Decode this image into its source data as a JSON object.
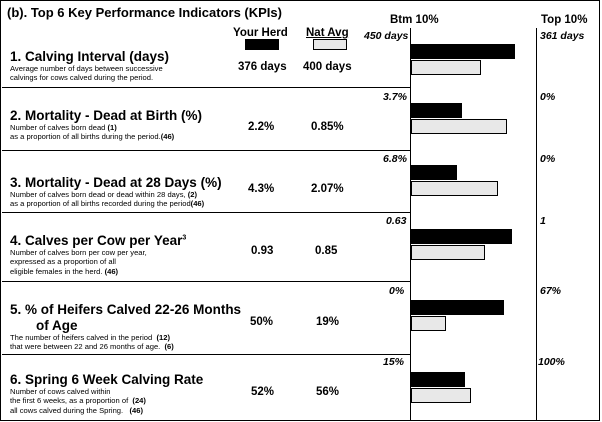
{
  "title": "(b). Top 6 Key Performance Indicators (KPIs)",
  "legend": {
    "herd_label": "Your Herd",
    "avg_label": "Nat Avg",
    "herd_color": "#000000",
    "avg_color": "#e8e8e8"
  },
  "scale": {
    "btm_label": "Btm 10%",
    "top_label": "Top 10%"
  },
  "kpis": [
    {
      "title": "1. Calving Interval (days)",
      "desc": [
        "Average number of days between successive",
        "calvings for cows calved during the period."
      ],
      "herd": "376 days",
      "avg": "400 days",
      "btm": "450 days",
      "top": "361 days"
    },
    {
      "title": "2. Mortality - Dead at Birth (%)",
      "desc_a": "Number of calves born dead",
      "num_a": "(1)",
      "desc_b": "as a proportion of all births during the period.",
      "num_b": "(46)",
      "herd": "2.2%",
      "avg": "0.85%",
      "btm": "3.7%",
      "top": "0%"
    },
    {
      "title": "3. Mortality - Dead at 28 Days (%)",
      "desc_a": "Number of calves born dead or dead within 28 days,",
      "num_a": "(2)",
      "desc_b": "as a proportion of all births recorded during the period",
      "num_b": "(46)",
      "herd": "4.3%",
      "avg": "2.07%",
      "btm": "6.8%",
      "top": "0%"
    },
    {
      "title": "4. Calves per Cow per Year",
      "sup": "3",
      "desc": [
        "Number of calves born per cow per year,",
        "expressed as a proportion of all"
      ],
      "desc_a": "eligible females in the herd.",
      "num_a": "(46)",
      "herd": "0.93",
      "avg": "0.85",
      "btm": "0.63",
      "top": "1"
    },
    {
      "title_1": "5. % of Heifers Calved 22-26 Months",
      "title_2": "of Age",
      "desc_a": "The number of heifers calved in the period",
      "num_a": "(12)",
      "desc_b": "that were between 22 and 26 months of age.",
      "num_b": "(6)",
      "herd": "50%",
      "avg": "19%",
      "btm": "0%",
      "top": "67%"
    },
    {
      "title": "6. Spring 6 Week Calving Rate",
      "desc": [
        "Number of cows calved within"
      ],
      "desc_a": "the first 6 weeks, as a proportion of",
      "num_a": "(24)",
      "desc_b": "all cows calved during the Spring.",
      "num_b": "(46)",
      "herd": "52%",
      "avg": "56%",
      "btm": "15%",
      "top": "100%"
    }
  ],
  "chart_data": {
    "type": "bar",
    "title": "(b). Top 6 Key Performance Indicators (KPIs)",
    "orientation": "horizontal",
    "scale_note": "each bar is positioned on a per-KPI scale from Btm 10% (left) to Top 10% (right)",
    "categories": [
      "1. Calving Interval (days)",
      "2. Mortality - Dead at Birth (%)",
      "3. Mortality - Dead at 28 Days (%)",
      "4. Calves per Cow per Year",
      "5. % of Heifers Calved 22-26 Months of Age",
      "6. Spring 6 Week Calving Rate"
    ],
    "btm10": [
      450,
      3.7,
      6.8,
      0.63,
      0,
      15
    ],
    "top10": [
      361,
      0,
      0,
      1,
      67,
      100
    ],
    "series": [
      {
        "name": "Your Herd",
        "values": [
          376,
          2.2,
          4.3,
          0.93,
          50,
          52
        ]
      },
      {
        "name": "Nat Avg",
        "values": [
          400,
          0.85,
          2.07,
          0.85,
          19,
          56
        ]
      }
    ]
  }
}
